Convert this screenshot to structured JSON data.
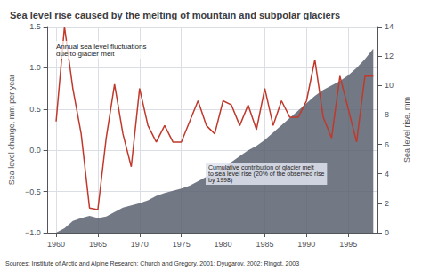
{
  "chart_data": {
    "type": "line",
    "title": "Sea level rise caused by the melting of mountain and subpolar glaciers",
    "ylabel": "Sea level change, mm per year",
    "y2label": "Sea level rise, mm",
    "annotations": [
      "Annual sea level fluctuations\ndue to glacier melt",
      "Cumulative contribution of glacier melt\nto sea level rise (20% of the observed rise\nby 1998)"
    ],
    "source": "Sources: Institute of Arctic and Alpine Research; Church and Gregory, 2001; Dyugarov, 2002; Ringot, 2003",
    "x": [
      1960,
      1961,
      1962,
      1963,
      1964,
      1965,
      1966,
      1967,
      1968,
      1969,
      1970,
      1971,
      1972,
      1973,
      1974,
      1975,
      1976,
      1977,
      1978,
      1979,
      1980,
      1981,
      1982,
      1983,
      1984,
      1985,
      1986,
      1987,
      1988,
      1989,
      1990,
      1991,
      1992,
      1993,
      1994,
      1995,
      1996,
      1997,
      1998
    ],
    "series": [
      {
        "type": "line",
        "color": "#c0392b",
        "values": [
          0.35,
          1.5,
          0.75,
          0.2,
          -0.7,
          -0.72,
          0.15,
          0.8,
          0.2,
          -0.2,
          0.75,
          0.3,
          0.1,
          0.3,
          0.1,
          0.1,
          0.35,
          0.6,
          0.3,
          0.2,
          0.6,
          0.55,
          0.3,
          0.55,
          0.25,
          0.75,
          0.3,
          0.6,
          0.4,
          0.4,
          0.6,
          1.1,
          0.4,
          0.15,
          0.9,
          0.5,
          0.1,
          0.9,
          0.9
        ]
      },
      {
        "type": "area",
        "color": "#5a6070",
        "axis": "y2",
        "values": [
          0.0,
          0.3,
          0.8,
          1.0,
          1.15,
          1.0,
          1.1,
          1.4,
          1.7,
          1.85,
          2.0,
          2.2,
          2.5,
          2.7,
          2.85,
          3.0,
          3.2,
          3.5,
          3.8,
          4.1,
          4.4,
          4.8,
          5.2,
          5.6,
          5.9,
          6.3,
          6.8,
          7.3,
          7.8,
          8.3,
          8.8,
          9.3,
          9.7,
          10.0,
          10.3,
          10.7,
          11.2,
          11.8,
          12.5
        ]
      }
    ],
    "xlim": [
      1959,
      1998.5
    ],
    "xticks": [
      1960,
      1965,
      1970,
      1975,
      1980,
      1985,
      1990,
      1995
    ],
    "ylim": [
      -1.0,
      1.5
    ],
    "yticks": [
      {
        "value": -1.0,
        "label": "−1.0"
      },
      {
        "value": -0.5,
        "label": "−0.5"
      },
      {
        "value": 0,
        "label": "0.0"
      },
      {
        "value": 0.5,
        "label": "0.5"
      },
      {
        "value": 1.0,
        "label": "1.0"
      },
      {
        "value": 1.5,
        "label": "1.5"
      }
    ],
    "y2lim": [
      0,
      14
    ],
    "y2ticks": [
      0,
      2,
      4,
      6,
      8,
      10,
      12,
      14
    ],
    "grid": true
  }
}
